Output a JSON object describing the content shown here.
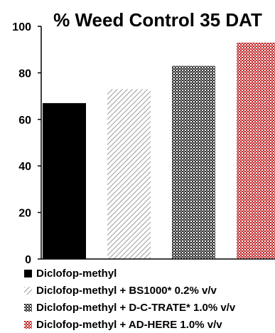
{
  "chart_data": {
    "type": "bar",
    "title": "% Weed Control 35 DAT",
    "xlabel": "",
    "ylabel": "",
    "ylim": [
      0,
      100
    ],
    "yticks": [
      0,
      20,
      40,
      60,
      80,
      100
    ],
    "grid": false,
    "legend_position": "bottom",
    "series": [
      {
        "name": "Diclofop-methyl",
        "values": [
          67
        ],
        "color": "#000000",
        "pattern": "solid"
      },
      {
        "name": "Diclofop-methyl + BS1000* 0.2% v/v",
        "values": [
          73
        ],
        "color": "#9a9a9a",
        "pattern": "diagonal-hatch"
      },
      {
        "name": "Diclofop-methyl + D-C-TRATE* 1.0% v/v",
        "values": [
          83
        ],
        "color": "#3a3a3a",
        "pattern": "checker"
      },
      {
        "name": "Diclofop-methyl + AD-HERE 1.0% v/v",
        "values": [
          93
        ],
        "color": "#c0282a",
        "pattern": "checker"
      }
    ]
  }
}
